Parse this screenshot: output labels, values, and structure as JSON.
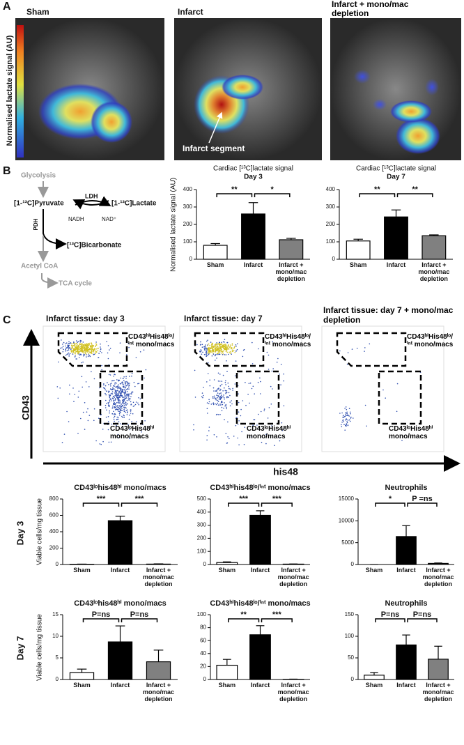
{
  "panel_labels": [
    "A",
    "B",
    "C"
  ],
  "panel_a": {
    "images": [
      "Sham",
      "Infarct",
      "Infarct + mono/mac depletion"
    ],
    "colorbar_label": "Normalised lactate signal (AU)",
    "annotation": "Infarct segment"
  },
  "panel_b_diagram": {
    "glycolysis": "Glycolysis",
    "pyruvate": "[1-¹³C]Pyruvate",
    "ldh": "LDH",
    "lactate": "[1-¹³C]Lactate",
    "nadh": "NADH",
    "nad": "NAD⁺",
    "pdh": "PDH",
    "bicarbonate": "[¹³C]Bicarbonate",
    "acetyl_coa": "Acetyl CoA",
    "tca": "TCA cycle"
  },
  "panel_c_flow": {
    "titles": [
      "Infarct tissue: day 3",
      "Infarct tissue: day 7",
      "Infarct tissue: day 7 + mono/mac depletion"
    ],
    "gate_upper": "CD43ʰⁱHis48ˡᵒ/ⁱⁿᵗ mono/macs",
    "gate_lower": "CD43ˡᵒHis48ʰⁱ mono/macs",
    "y_axis": "CD43",
    "x_axis": "his48"
  },
  "row_labels": [
    "Day 3",
    "Day 7"
  ],
  "chart_data": [
    {
      "type": "bar",
      "title": "Cardiac [¹³C]lactate signal",
      "subtitle": "Day 3",
      "ylabel": "Normalised lactate signal (AU)",
      "categories": [
        "Sham",
        "Infarct",
        "Infarct + mono/mac depletion"
      ],
      "values": [
        80,
        260,
        112
      ],
      "errors": [
        10,
        65,
        8
      ],
      "colors": [
        "#ffffff",
        "#000000",
        "#808080"
      ],
      "ylim": [
        0,
        400
      ],
      "yticks": [
        0,
        100,
        200,
        300,
        400
      ],
      "annotations": [
        "**",
        "*"
      ]
    },
    {
      "type": "bar",
      "title": "Cardiac [¹³C]lactate signal",
      "subtitle": "Day 7",
      "categories": [
        "Sham",
        "Infarct",
        "Infarct + mono/mac depletion"
      ],
      "values": [
        105,
        243,
        135
      ],
      "errors": [
        10,
        40,
        5
      ],
      "colors": [
        "#ffffff",
        "#000000",
        "#808080"
      ],
      "ylim": [
        0,
        400
      ],
      "yticks": [
        0,
        100,
        200,
        300,
        400
      ],
      "annotations": [
        "**",
        "**"
      ]
    },
    {
      "type": "bar",
      "title": "CD43ˡᵒhis48ʰⁱ mono/macs",
      "ylabel": "Viable cells/mg tissue",
      "categories": [
        "Sham",
        "Infarct",
        "Infarct + mono/mac depletion"
      ],
      "values": [
        3,
        535,
        5
      ],
      "errors": [
        2,
        55,
        3
      ],
      "colors": [
        "#ffffff",
        "#000000",
        "#808080"
      ],
      "ylim": [
        0,
        800
      ],
      "yticks": [
        0,
        200,
        400,
        600,
        800
      ],
      "annotations": [
        "***",
        "***"
      ]
    },
    {
      "type": "bar",
      "title": "CD43ʰⁱhis48ˡᵒ/ⁱⁿᵗ mono/macs",
      "categories": [
        "Sham",
        "Infarct",
        "Infarct + mono/mac depletion"
      ],
      "values": [
        15,
        375,
        3
      ],
      "errors": [
        5,
        35,
        1
      ],
      "colors": [
        "#ffffff",
        "#000000",
        "#808080"
      ],
      "ylim": [
        0,
        500
      ],
      "yticks": [
        0,
        100,
        200,
        300,
        400,
        500
      ],
      "annotations": [
        "***",
        "***"
      ]
    },
    {
      "type": "bar",
      "title": "Neutrophils",
      "categories": [
        "Sham",
        "Infarct",
        "Infarct + mono/mac depletion"
      ],
      "values": [
        0,
        6400,
        250
      ],
      "errors": [
        0,
        2500,
        100
      ],
      "colors": [
        "#ffffff",
        "#000000",
        "#808080"
      ],
      "ylim": [
        0,
        15000
      ],
      "yticks": [
        0,
        5000,
        10000,
        15000
      ],
      "annotations": [
        "*",
        "P =ns"
      ]
    },
    {
      "type": "bar",
      "title": "CD43ˡᵒhis48ʰⁱ mono/macs",
      "ylabel": "Viable cells/mg tissue",
      "categories": [
        "Sham",
        "Infarct",
        "Infarct + mono/mac depletion"
      ],
      "values": [
        1.6,
        8.7,
        4.1
      ],
      "errors": [
        0.8,
        3.7,
        2.7
      ],
      "colors": [
        "#ffffff",
        "#000000",
        "#808080"
      ],
      "ylim": [
        0,
        15
      ],
      "yticks": [
        0,
        5,
        10,
        15
      ],
      "annotations": [
        "P=ns",
        "P=ns"
      ]
    },
    {
      "type": "bar",
      "title": "CD43ʰⁱhis48ˡᵒ/ⁱⁿᵗ mono/macs",
      "categories": [
        "Sham",
        "Infarct",
        "Infarct + mono/mac depletion"
      ],
      "values": [
        22,
        69,
        0.3
      ],
      "errors": [
        9,
        14,
        0.3
      ],
      "colors": [
        "#ffffff",
        "#000000",
        "#808080"
      ],
      "ylim": [
        0,
        100
      ],
      "yticks": [
        0,
        20,
        40,
        60,
        80,
        100
      ],
      "annotations": [
        "**",
        "***"
      ]
    },
    {
      "type": "bar",
      "title": "Neutrophils",
      "categories": [
        "Sham",
        "Infarct",
        "Infarct + mono/mac depletion"
      ],
      "values": [
        10,
        80,
        47
      ],
      "errors": [
        6,
        23,
        30
      ],
      "colors": [
        "#ffffff",
        "#000000",
        "#808080"
      ],
      "ylim": [
        0,
        150
      ],
      "yticks": [
        0,
        50,
        100,
        150
      ],
      "annotations": [
        "P=ns",
        "P=ns"
      ]
    }
  ]
}
